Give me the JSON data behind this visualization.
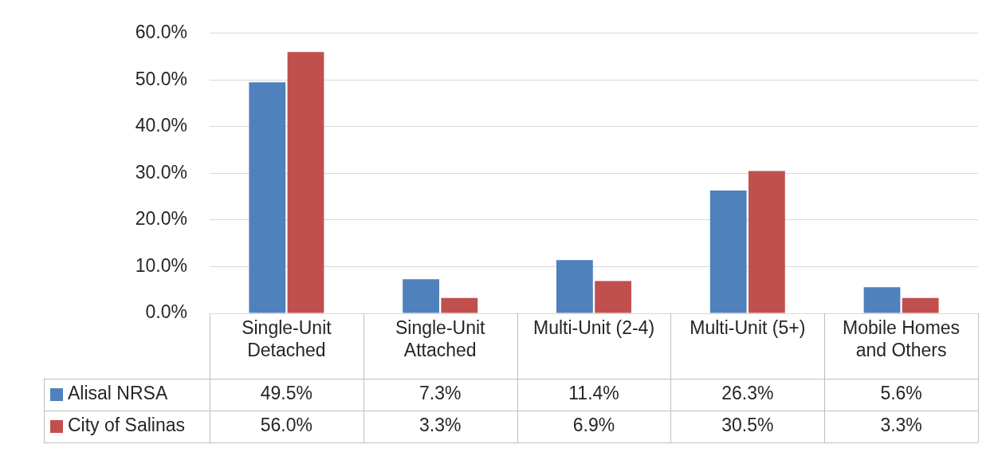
{
  "chart_data": {
    "type": "bar",
    "categories": [
      "Single-Unit Detached",
      "Single-Unit Attached",
      "Multi-Unit (2-4)",
      "Multi-Unit (5+)",
      "Mobile Homes and Others"
    ],
    "series": [
      {
        "name": "Alisal NRSA",
        "color": "#4f81bd",
        "values": [
          49.5,
          7.3,
          11.4,
          26.3,
          5.6
        ],
        "value_labels": [
          "49.5%",
          "7.3%",
          "11.4%",
          "26.3%",
          "5.6%"
        ]
      },
      {
        "name": "City of Salinas",
        "color": "#c0504d",
        "values": [
          56.0,
          3.3,
          6.9,
          30.5,
          3.3
        ],
        "value_labels": [
          "56.0%",
          "3.3%",
          "6.9%",
          "30.5%",
          "3.3%"
        ]
      }
    ],
    "ylim": [
      0,
      60
    ],
    "yticks": [
      {
        "value": 0,
        "label": "0.0%"
      },
      {
        "value": 10,
        "label": "10.0%"
      },
      {
        "value": 20,
        "label": "20.0%"
      },
      {
        "value": 30,
        "label": "30.0%"
      },
      {
        "value": 40,
        "label": "40.0%"
      },
      {
        "value": 50,
        "label": "50.0%"
      },
      {
        "value": 60,
        "label": "60.0%"
      }
    ],
    "grid": "y",
    "legend": "bottom"
  }
}
